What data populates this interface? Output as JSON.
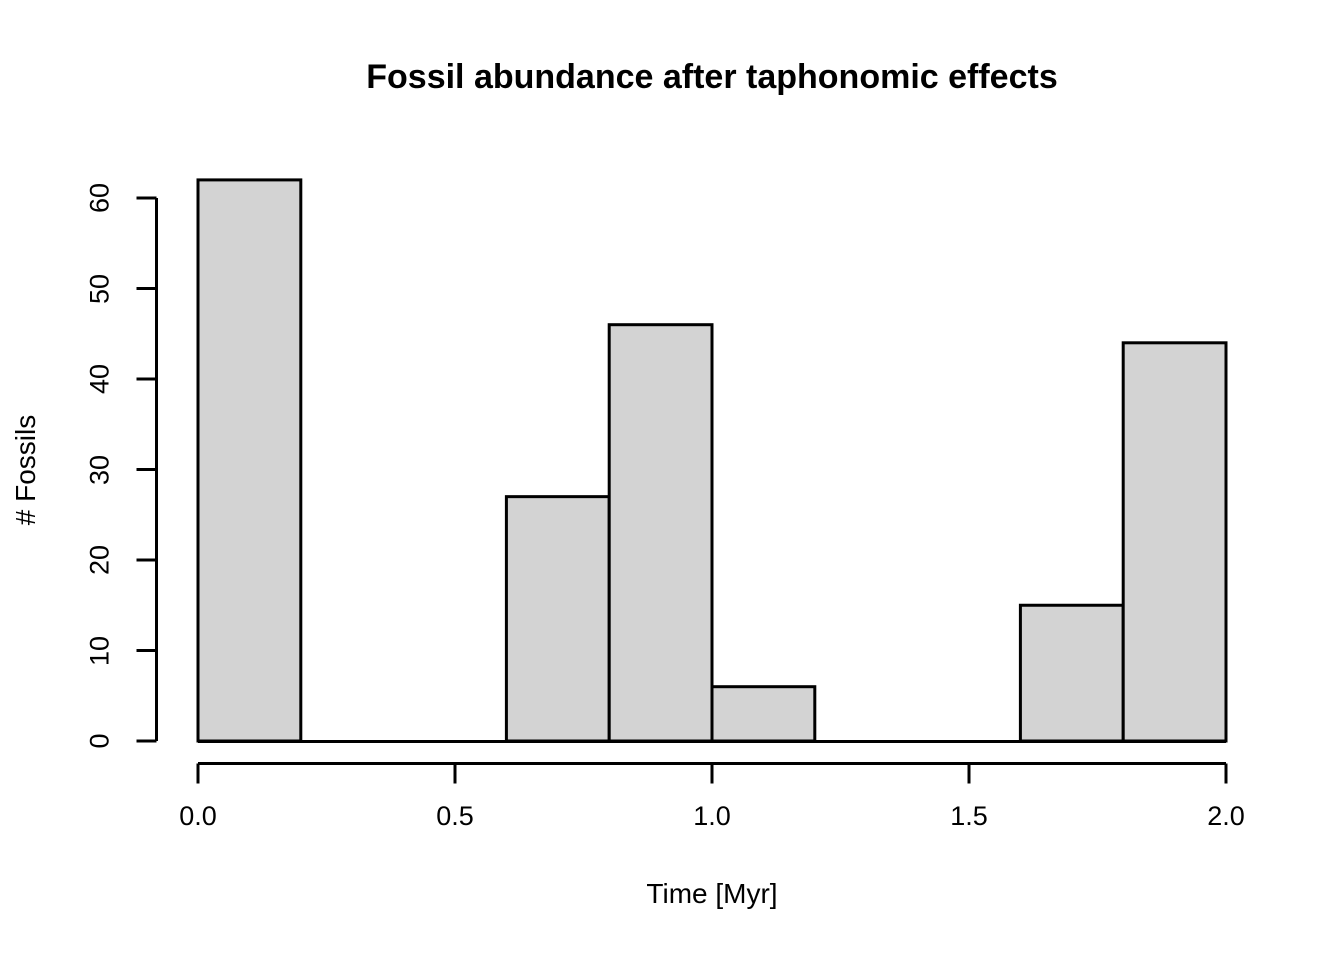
{
  "chart_data": {
    "type": "bar",
    "subtype": "histogram",
    "title": "Fossil abundance after taphonomic effects",
    "xlabel": "Time [Myr]",
    "ylabel": "# Fossils",
    "xlim": [
      0.0,
      2.0
    ],
    "ylim": [
      0,
      62
    ],
    "grid": false,
    "legend": null,
    "bin_width": 0.2,
    "bins": [
      {
        "x0": 0.0,
        "x1": 0.2,
        "count": 62
      },
      {
        "x0": 0.2,
        "x1": 0.4,
        "count": 0
      },
      {
        "x0": 0.4,
        "x1": 0.6,
        "count": 0
      },
      {
        "x0": 0.6,
        "x1": 0.8,
        "count": 27
      },
      {
        "x0": 0.8,
        "x1": 1.0,
        "count": 46
      },
      {
        "x0": 1.0,
        "x1": 1.2,
        "count": 6
      },
      {
        "x0": 1.2,
        "x1": 1.4,
        "count": 0
      },
      {
        "x0": 1.4,
        "x1": 1.6,
        "count": 0
      },
      {
        "x0": 1.6,
        "x1": 1.8,
        "count": 15
      },
      {
        "x0": 1.8,
        "x1": 2.0,
        "count": 44
      }
    ],
    "x_ticks": [
      0.0,
      0.5,
      1.0,
      1.5,
      2.0
    ],
    "x_tick_labels": [
      "0.0",
      "0.5",
      "1.0",
      "1.5",
      "2.0"
    ],
    "y_ticks": [
      0,
      10,
      20,
      30,
      40,
      50,
      60
    ],
    "y_tick_labels": [
      "0",
      "10",
      "20",
      "30",
      "40",
      "50",
      "60"
    ],
    "colors": {
      "bar_fill": "#d3d3d3",
      "bar_border": "#000000",
      "axis": "#000000",
      "text": "#000000",
      "background": "#ffffff"
    }
  }
}
